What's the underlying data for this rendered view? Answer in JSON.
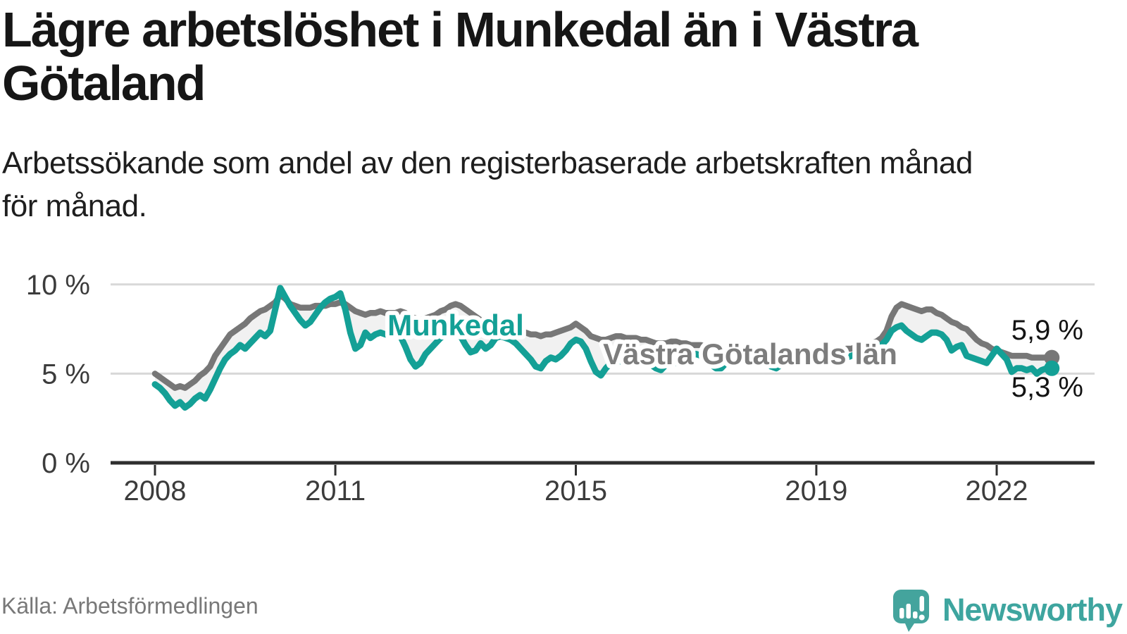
{
  "header": {
    "title_lines": [
      "Lägre arbetslöshet i Munkedal än i Västra",
      "Götaland"
    ],
    "subtitle_lines": [
      "Arbetssökande som andel av den registerbaserade arbetskraften månad",
      "för månad."
    ]
  },
  "footer": {
    "source": "Källa: Arbetsförmedlingen",
    "brand_name": "Newsworthy",
    "brand_color": "#3ea59f"
  },
  "chart_data": {
    "type": "line",
    "title": "Lägre arbetslöshet i Munkedal än i Västra Götaland",
    "subtitle": "Arbetssökande som andel av den registerbaserade arbetskraften månad för månad.",
    "unit": "%",
    "x_start_year": 2008,
    "points_per_month": 1,
    "ylim": [
      0,
      10.8
    ],
    "grid": "horizontal",
    "legend_position": "inline-labels",
    "band_fill_between_series": "#f1f1f1",
    "y_ticks": [
      {
        "label": "0 %",
        "value": 0
      },
      {
        "label": "5 %",
        "value": 5
      },
      {
        "label": "10 %",
        "value": 10
      }
    ],
    "x_ticks": [
      {
        "label": "2008",
        "month": 0
      },
      {
        "label": "2011",
        "month": 36
      },
      {
        "label": "2015",
        "month": 84
      },
      {
        "label": "2019",
        "month": 132
      },
      {
        "label": "2022",
        "month": 168
      }
    ],
    "series": [
      {
        "name": "Västra Götalands län",
        "color": "#777777",
        "end_label": "5,9 %",
        "end_value": 5.9,
        "values": [
          5.0,
          4.8,
          4.6,
          4.4,
          4.2,
          4.3,
          4.2,
          4.4,
          4.6,
          4.9,
          5.1,
          5.4,
          6.0,
          6.4,
          6.8,
          7.2,
          7.4,
          7.6,
          7.8,
          8.1,
          8.3,
          8.5,
          8.6,
          8.8,
          9.0,
          9.4,
          9.2,
          8.9,
          8.8,
          8.7,
          8.7,
          8.7,
          8.8,
          8.8,
          8.8,
          8.9,
          8.9,
          9.0,
          8.9,
          8.7,
          8.5,
          8.4,
          8.3,
          8.4,
          8.4,
          8.5,
          8.4,
          8.4,
          8.4,
          8.5,
          8.4,
          8.2,
          8.1,
          8.0,
          8.1,
          8.2,
          8.3,
          8.5,
          8.6,
          8.8,
          8.9,
          8.8,
          8.6,
          8.4,
          8.2,
          8.0,
          7.9,
          7.9,
          7.9,
          7.8,
          7.7,
          7.6,
          7.5,
          7.4,
          7.3,
          7.2,
          7.2,
          7.1,
          7.2,
          7.2,
          7.3,
          7.4,
          7.5,
          7.6,
          7.8,
          7.6,
          7.4,
          7.1,
          7.0,
          6.9,
          6.9,
          7.0,
          7.1,
          7.1,
          7.0,
          7.0,
          7.0,
          6.9,
          6.9,
          6.8,
          6.7,
          6.7,
          6.7,
          6.8,
          6.8,
          6.7,
          6.7,
          6.6,
          6.6,
          6.6,
          6.5,
          6.4,
          6.4,
          6.3,
          6.4,
          6.4,
          6.5,
          6.4,
          6.4,
          6.3,
          6.3,
          6.2,
          6.2,
          6.1,
          6.0,
          6.0,
          6.1,
          6.1,
          6.2,
          6.1,
          6.1,
          6.1,
          6.1,
          6.1,
          6.1,
          6.1,
          6.2,
          6.3,
          6.4,
          6.4,
          6.5,
          6.5,
          6.6,
          6.7,
          6.8,
          7.0,
          7.4,
          8.2,
          8.7,
          8.9,
          8.8,
          8.7,
          8.6,
          8.5,
          8.6,
          8.6,
          8.4,
          8.3,
          8.1,
          7.9,
          7.8,
          7.6,
          7.5,
          7.2,
          6.9,
          6.7,
          6.6,
          6.4,
          6.3,
          6.2,
          6.1,
          6.0,
          6.0,
          6.0,
          6.0,
          5.9,
          5.9,
          5.9,
          5.9,
          5.9
        ]
      },
      {
        "name": "Munkedal",
        "color": "#14a096",
        "end_label": "5,3 %",
        "end_value": 5.3,
        "values": [
          4.4,
          4.2,
          3.9,
          3.5,
          3.2,
          3.4,
          3.1,
          3.3,
          3.6,
          3.8,
          3.6,
          4.1,
          4.7,
          5.3,
          5.8,
          6.1,
          6.3,
          6.6,
          6.4,
          6.7,
          7.0,
          7.3,
          7.1,
          7.4,
          8.6,
          9.8,
          9.3,
          8.8,
          8.4,
          8.0,
          7.7,
          7.9,
          8.3,
          8.7,
          9.0,
          9.2,
          9.3,
          9.5,
          8.6,
          7.3,
          6.4,
          6.6,
          7.3,
          7.0,
          7.2,
          7.3,
          7.2,
          7.2,
          7.2,
          7.1,
          6.5,
          5.8,
          5.4,
          5.6,
          6.1,
          6.4,
          6.7,
          7.0,
          7.2,
          7.3,
          7.3,
          7.1,
          6.6,
          6.2,
          6.3,
          6.7,
          6.4,
          6.6,
          7.0,
          7.1,
          7.0,
          6.9,
          6.7,
          6.4,
          6.1,
          5.8,
          5.4,
          5.3,
          5.7,
          5.9,
          5.8,
          6.0,
          6.3,
          6.7,
          6.9,
          6.8,
          6.4,
          5.7,
          5.1,
          4.9,
          5.3,
          5.6,
          5.8,
          5.7,
          5.5,
          5.7,
          5.9,
          6.0,
          5.8,
          5.5,
          5.3,
          5.2,
          5.5,
          5.7,
          5.6,
          5.8,
          5.9,
          6.0,
          6.1,
          6.0,
          5.7,
          5.5,
          5.3,
          5.3,
          5.6,
          5.8,
          5.7,
          5.9,
          6.0,
          6.1,
          6.0,
          5.8,
          5.6,
          5.4,
          5.3,
          5.5,
          5.7,
          5.9,
          5.8,
          6.0,
          6.1,
          6.2,
          6.1,
          5.9,
          5.7,
          5.6,
          5.5,
          5.7,
          5.9,
          6.0,
          6.1,
          6.2,
          6.3,
          6.4,
          6.5,
          6.6,
          6.9,
          7.4,
          7.6,
          7.7,
          7.4,
          7.2,
          7.0,
          6.9,
          7.1,
          7.3,
          7.3,
          7.2,
          6.9,
          6.3,
          6.5,
          6.6,
          6.0,
          5.9,
          5.8,
          5.7,
          5.6,
          6.0,
          6.4,
          6.1,
          5.8,
          5.1,
          5.3,
          5.3,
          5.2,
          5.3,
          5.0,
          5.2,
          5.3,
          5.3
        ]
      }
    ]
  }
}
